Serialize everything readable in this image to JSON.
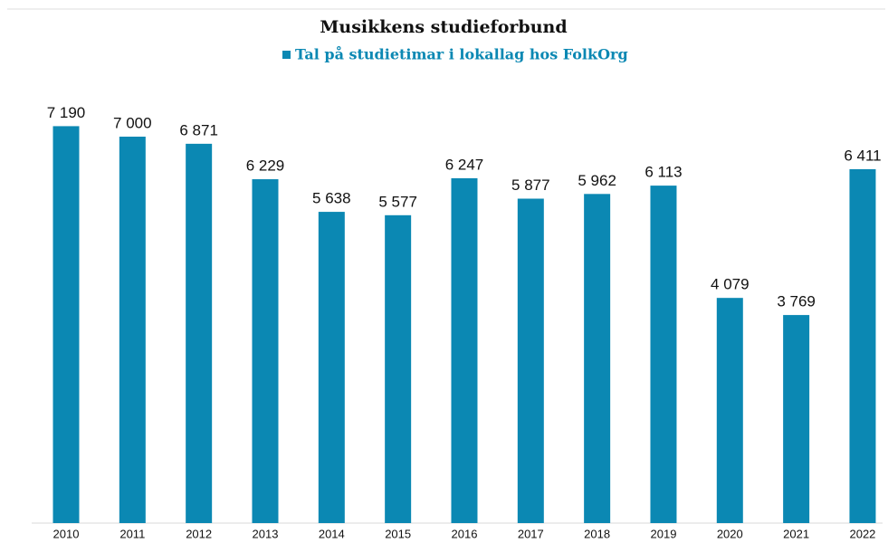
{
  "chart_data": {
    "type": "bar",
    "title": "Musikkens studieforbund",
    "categories": [
      "2010",
      "2011",
      "2012",
      "2013",
      "2014",
      "2015",
      "2016",
      "2017",
      "2018",
      "2019",
      "2020",
      "2021",
      "2022"
    ],
    "series": [
      {
        "name": "Tal på studietimar i lokallag hos FolkOrg",
        "color": "#0b88b3",
        "values": [
          7190,
          7000,
          6871,
          6229,
          5638,
          5577,
          6247,
          5877,
          5962,
          6113,
          4079,
          3769,
          6411
        ],
        "value_labels": [
          "7 190",
          "7 000",
          "6 871",
          "6 229",
          "5 638",
          "5 577",
          "6 247",
          "5 877",
          "5 962",
          "6 113",
          "4 079",
          "3 769",
          "6 411"
        ]
      }
    ],
    "ylim": [
      0,
      8000
    ]
  }
}
